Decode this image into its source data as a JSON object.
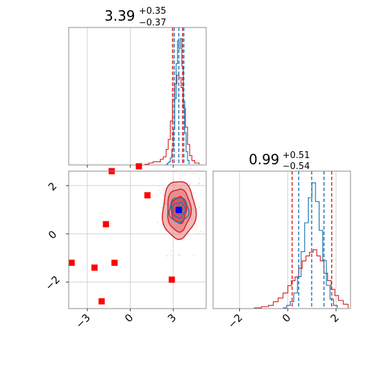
{
  "chart_data": {
    "type": "corner",
    "param1": {
      "title_value": "3.39",
      "title_plus": "+0.35",
      "title_minus": "−0.37",
      "range": [
        -4.3,
        5.3
      ],
      "ticks": [
        -3,
        0,
        3
      ],
      "tick_labels": [
        "−3",
        "0",
        "3"
      ],
      "blue_quantiles": [
        3.07,
        3.39,
        3.74
      ],
      "red_quantiles": [
        2.95,
        3.65
      ]
    },
    "param2": {
      "title_value": "0.99",
      "title_plus": "+0.51",
      "title_minus": "−0.54",
      "range": [
        -3.1,
        2.6
      ],
      "ticks": [
        -2,
        0,
        2
      ],
      "tick_labels": [
        "−2",
        "0",
        "2"
      ],
      "blue_quantiles": [
        0.45,
        0.99,
        1.5
      ],
      "red_quantiles": [
        0.18,
        1.82
      ]
    },
    "hist1_blue": {
      "x": [
        2.5,
        2.6,
        2.7,
        2.8,
        2.9,
        3.0,
        3.1,
        3.2,
        3.3,
        3.4,
        3.5,
        3.6,
        3.7,
        3.8,
        3.9,
        4.0,
        4.1
      ],
      "y": [
        0.0,
        0.01,
        0.02,
        0.05,
        0.12,
        0.28,
        0.52,
        0.8,
        0.98,
        0.92,
        1.0,
        0.78,
        0.5,
        0.25,
        0.1,
        0.03,
        0.0
      ]
    },
    "hist1_red": {
      "x": [
        1.0,
        1.3,
        1.6,
        1.9,
        2.1,
        2.3,
        2.5,
        2.65,
        2.8,
        2.95,
        3.1,
        3.25,
        3.4,
        3.55,
        3.7,
        3.85,
        4.0,
        4.15,
        4.3,
        4.5,
        4.8
      ],
      "y": [
        0.0,
        0.01,
        0.02,
        0.02,
        0.04,
        0.06,
        0.12,
        0.2,
        0.35,
        0.52,
        0.65,
        0.72,
        0.7,
        0.62,
        0.45,
        0.3,
        0.16,
        0.07,
        0.03,
        0.01,
        0.0
      ]
    },
    "hist2_blue": {
      "x": [
        -0.2,
        -0.05,
        0.1,
        0.25,
        0.4,
        0.55,
        0.7,
        0.85,
        1.0,
        1.15,
        1.3,
        1.45,
        1.6,
        1.75,
        1.9,
        2.05
      ],
      "y": [
        0.0,
        0.02,
        0.05,
        0.12,
        0.25,
        0.45,
        0.68,
        0.88,
        1.0,
        0.85,
        0.62,
        0.38,
        0.18,
        0.07,
        0.02,
        0.0
      ]
    },
    "hist2_red": {
      "x": [
        -1.4,
        -1.1,
        -0.8,
        -0.6,
        -0.4,
        -0.2,
        0.0,
        0.15,
        0.3,
        0.45,
        0.6,
        0.75,
        0.9,
        1.05,
        1.2,
        1.35,
        1.5,
        1.65,
        1.8,
        1.95,
        2.1,
        2.3,
        2.5
      ],
      "y": [
        0.0,
        0.01,
        0.02,
        0.05,
        0.08,
        0.12,
        0.18,
        0.22,
        0.25,
        0.32,
        0.38,
        0.42,
        0.45,
        0.47,
        0.42,
        0.38,
        0.28,
        0.22,
        0.15,
        0.1,
        0.06,
        0.03,
        0.01
      ]
    },
    "red_markers": [
      [
        -4.1,
        -1.2
      ],
      [
        -1.3,
        2.6
      ],
      [
        0.6,
        2.8
      ],
      [
        1.2,
        1.6
      ],
      [
        -1.7,
        0.4
      ],
      [
        -2.5,
        -1.4
      ],
      [
        -1.1,
        -1.2
      ],
      [
        -2.0,
        -2.8
      ],
      [
        2.9,
        -1.9
      ]
    ],
    "blue_marker": [
      3.39,
      0.99
    ],
    "contour_center": [
      3.39,
      0.99
    ],
    "colors": {
      "blue": "#1f77b4",
      "red": "#d62728",
      "red_fill": "#e88080",
      "grid": "#d0d0d0",
      "axis": "#888888",
      "text": "#000000",
      "marker_blue": "#0000ff",
      "marker_red": "#ff0000"
    },
    "grid": true
  }
}
